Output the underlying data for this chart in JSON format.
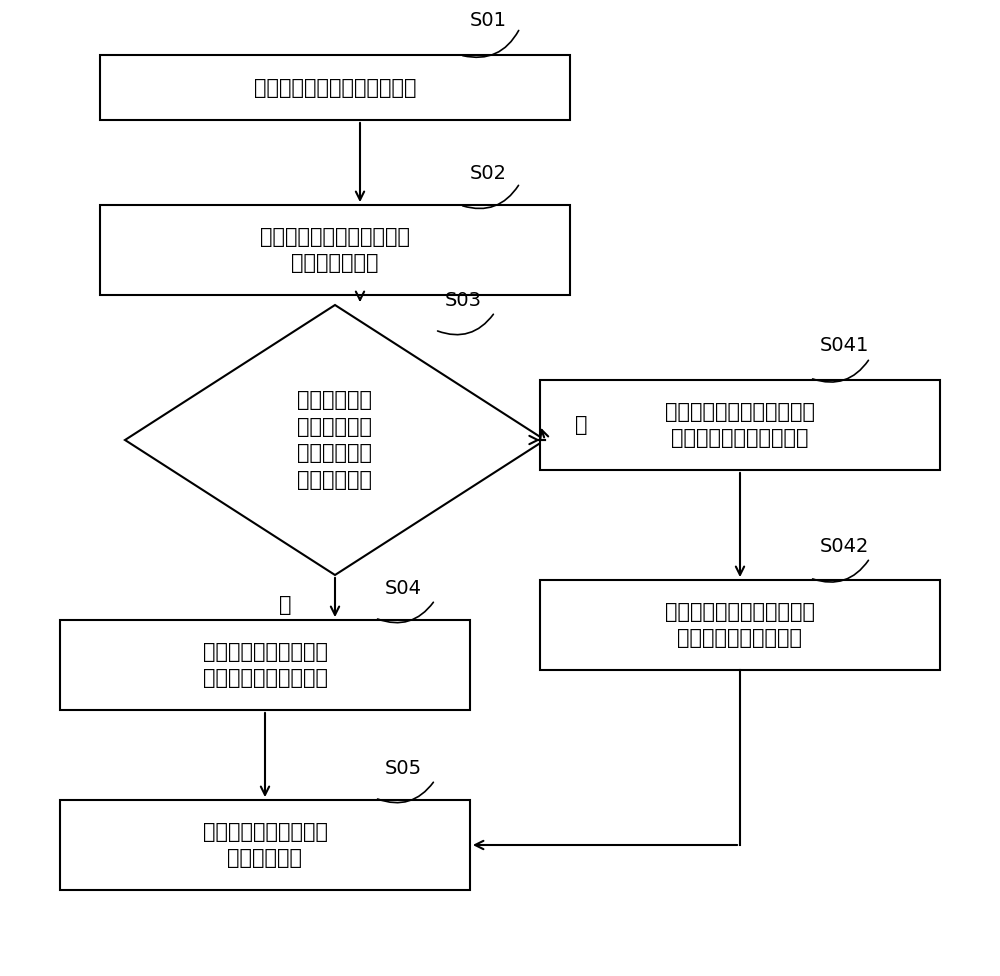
{
  "bg_color": "#ffffff",
  "line_color": "#000000",
  "font_size": 15,
  "label_font_size": 14,
  "s01_text": "控制驱动信号的驱动频率为零",
  "s02_text": "利用控制单元控制驱动频率\n以先行方式增加",
  "s03_text": "检测储能单元\n的一端电压差\n是否上升至一\n预设电压值？",
  "s04_text": "调整驱动信号以使端电\n压差保持于预设电压值",
  "s05_text": "持续降低驱动频率，以\n控制马达减速",
  "s041_text": "待驱动频率上升至一预设频\n率值，开始降低驱动频率",
  "s042_text": "调整驱动信号，以使端电压\n差保持于一当前电压值",
  "no_text": "否",
  "yes_text": "是"
}
